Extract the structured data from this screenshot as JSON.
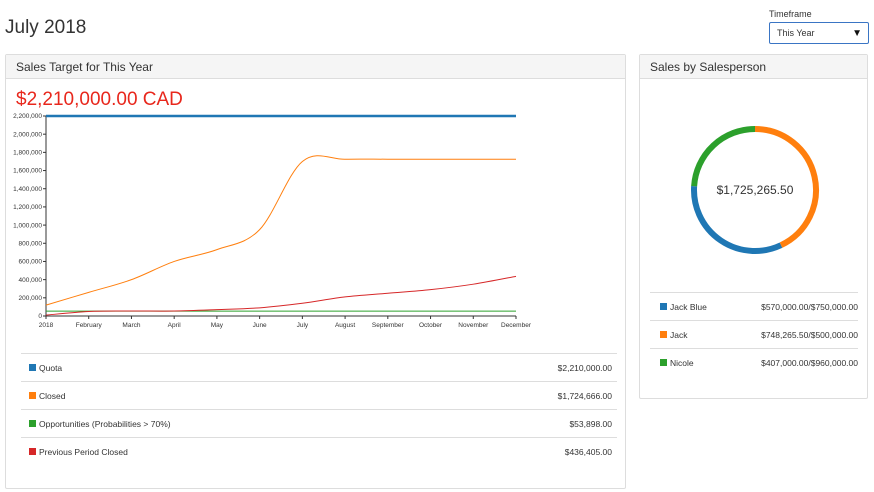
{
  "page_title": "July 2018",
  "timeframe": {
    "label": "Timeframe",
    "value": "This Year"
  },
  "sales_target": {
    "title": "Sales Target for This Year",
    "target_value": "$2,210,000.00 CAD",
    "legend": [
      {
        "label": "Quota",
        "value": "$2,210,000.00",
        "color": "#1f77b4"
      },
      {
        "label": "Closed",
        "value": "$1,724,666.00",
        "color": "#ff7f0e"
      },
      {
        "label": "Opportunities (Probabilities > 70%)",
        "value": "$53,898.00",
        "color": "#2ca02c"
      },
      {
        "label": "Previous Period Closed",
        "value": "$436,405.00",
        "color": "#d62728"
      }
    ]
  },
  "chart_data": {
    "type": "line",
    "x": [
      "2018",
      "February",
      "March",
      "April",
      "May",
      "June",
      "July",
      "August",
      "September",
      "October",
      "November",
      "December"
    ],
    "ylim": [
      0,
      2200000
    ],
    "yticks": [
      0,
      200000,
      400000,
      600000,
      800000,
      1000000,
      1200000,
      1400000,
      1600000,
      1800000,
      2000000,
      2200000
    ],
    "ytick_labels": [
      "0",
      "200,000",
      "400,000",
      "600,000",
      "800,000",
      "1,000,000",
      "1,200,000",
      "1,400,000",
      "1,600,000",
      "1,800,000",
      "2,000,000",
      "2,200,000"
    ],
    "series": [
      {
        "name": "Quota",
        "color": "#1f77b4",
        "values": [
          2210000,
          2210000,
          2210000,
          2210000,
          2210000,
          2210000,
          2210000,
          2210000,
          2210000,
          2210000,
          2210000,
          2210000
        ]
      },
      {
        "name": "Closed",
        "color": "#ff7f0e",
        "values": [
          120000,
          260000,
          400000,
          600000,
          730000,
          950000,
          1700000,
          1724666,
          1724666,
          1724666,
          1724666,
          1724666
        ]
      },
      {
        "name": "Opportunities (Probabilities > 70%)",
        "color": "#2ca02c",
        "values": [
          53898,
          53898,
          53898,
          53898,
          53898,
          53898,
          53898,
          53898,
          53898,
          53898,
          53898,
          53898
        ]
      },
      {
        "name": "Previous Period Closed",
        "color": "#d62728",
        "values": [
          10000,
          50000,
          55000,
          55000,
          70000,
          90000,
          140000,
          210000,
          250000,
          290000,
          350000,
          436405
        ]
      }
    ]
  },
  "by_salesperson": {
    "title": "Sales by Salesperson",
    "total": "$1,725,265.50",
    "donut": [
      {
        "name": "Jack Blue",
        "share": 0.33,
        "color": "#1f77b4"
      },
      {
        "name": "Jack",
        "share": 0.43,
        "color": "#ff7f0e"
      },
      {
        "name": "Nicole",
        "share": 0.24,
        "color": "#2ca02c"
      }
    ],
    "people": [
      {
        "name": "Jack Blue",
        "value": "$570,000.00/$750,000.00",
        "color": "#1f77b4"
      },
      {
        "name": "Jack",
        "value": "$748,265.50/$500,000.00",
        "color": "#ff7f0e"
      },
      {
        "name": "Nicole",
        "value": "$407,000.00/$960,000.00",
        "color": "#2ca02c"
      }
    ]
  }
}
